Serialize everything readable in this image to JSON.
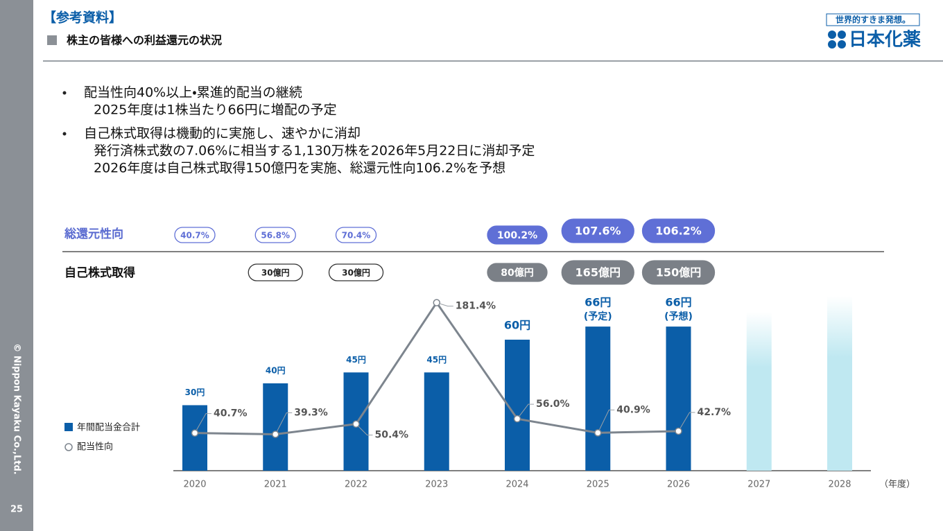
{
  "header": {
    "tag": "【参考資料】",
    "title": "株主の皆様への利益還元の状況"
  },
  "logo": {
    "tagline": "世界的すきま発想。",
    "name": "日本化薬"
  },
  "sidebar": {
    "copyright": "© Nippon Kayaku Co.,Ltd.",
    "page": "25"
  },
  "bullets": [
    {
      "text": "配当性向40%以上・累進的配当の継続",
      "sub": [
        "2025年度は1株当たり66円に増配の予定"
      ]
    },
    {
      "text": "自己株式取得は機動的に実施し、速やかに消却",
      "sub": [
        "発行済株式数の7.06%に相当する1,130万株を2026年5月22日に消却予定",
        "2026年度は自己株式取得150億円を実施、総還元性向106.2%を予想"
      ]
    }
  ],
  "chart_data": {
    "type": "bar",
    "categories": [
      "2020",
      "2021",
      "2022",
      "2023",
      "2024",
      "2025",
      "2026",
      "2027",
      "2028"
    ],
    "x_unit": "（年度）",
    "series": [
      {
        "name": "年間配当金合計",
        "type": "bar",
        "color": "#0b5ea8",
        "values": [
          30,
          40,
          45,
          45,
          60,
          66,
          66,
          null,
          null
        ],
        "value_labels": [
          "30円",
          "40円",
          "45円",
          "45円",
          "60円",
          "66円",
          "66円",
          null,
          null
        ],
        "value_notes": [
          null,
          null,
          null,
          null,
          null,
          "(予定)",
          "(予想)",
          null,
          null
        ]
      },
      {
        "name": "配当性向",
        "type": "line",
        "color": "#7d858e",
        "values": [
          40.7,
          39.3,
          50.4,
          181.4,
          56.0,
          40.9,
          42.7,
          null,
          null
        ],
        "value_labels": [
          "40.7%",
          "39.3%",
          "50.4%",
          "181.4%",
          "56.0%",
          "40.9%",
          "42.7%",
          null,
          null
        ]
      }
    ],
    "total_return": {
      "label": "総還元性向",
      "values": [
        40.7,
        56.8,
        70.4,
        null,
        100.2,
        107.6,
        106.2,
        null,
        null
      ],
      "value_labels": [
        "40.7%",
        "56.8%",
        "70.4%",
        null,
        "100.2%",
        "107.6%",
        "106.2%",
        null,
        null
      ]
    },
    "buyback": {
      "label": "自己株式取得",
      "values": [
        null,
        30,
        30,
        null,
        80,
        165,
        150,
        null,
        null
      ],
      "value_labels": [
        null,
        "30億円",
        "30億円",
        null,
        "80億円",
        "165億円",
        "150億円",
        null,
        null
      ]
    }
  }
}
